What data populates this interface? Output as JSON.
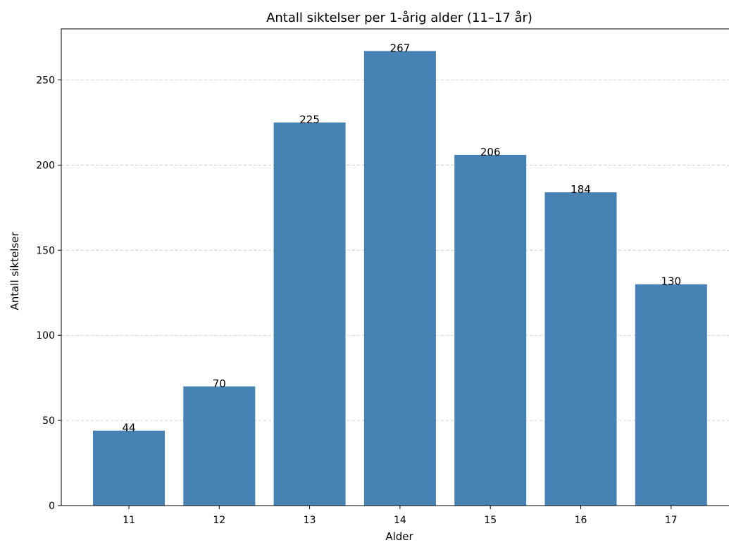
{
  "chart_data": {
    "type": "bar",
    "title": "Antall siktelser per 1-årig alder (11–17 år)",
    "xlabel": "Alder",
    "ylabel": "Antall siktelser",
    "categories": [
      "11",
      "12",
      "13",
      "14",
      "15",
      "16",
      "17"
    ],
    "values": [
      44,
      70,
      225,
      267,
      206,
      184,
      130
    ],
    "data_labels": [
      "44",
      "70",
      "225",
      "267",
      "206",
      "184",
      "130"
    ],
    "ylim": [
      0,
      280
    ],
    "yticks": [
      0,
      50,
      100,
      150,
      200,
      250
    ],
    "ytick_labels": [
      "0",
      "50",
      "100",
      "150",
      "200",
      "250"
    ],
    "grid": "y-dashed",
    "bar_color": "#4682b4"
  }
}
